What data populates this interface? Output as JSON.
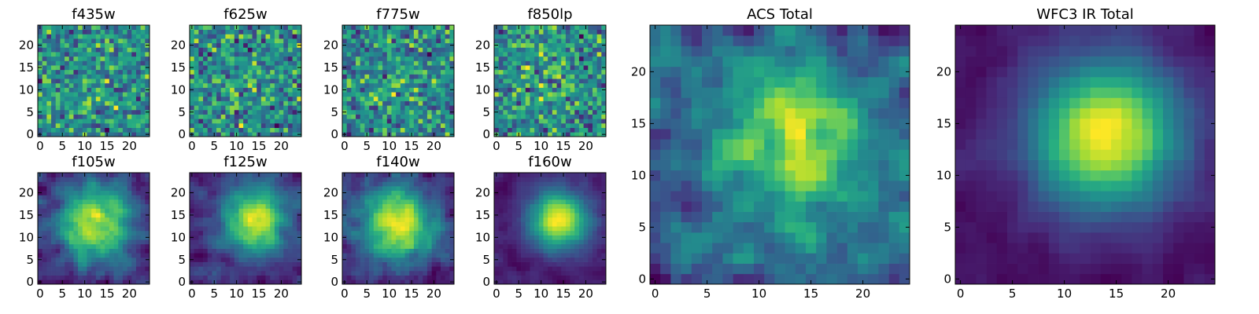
{
  "figure": {
    "colormap": "viridis"
  },
  "chart_data": [
    {
      "type": "heatmap",
      "title": "f435w",
      "grid_size": 25,
      "seed": 11,
      "blob": {
        "cx": 12,
        "cy": 12,
        "sigma": 5,
        "amp": 0.05
      },
      "noise": 1.0,
      "xticks": [
        "0",
        "5",
        "10",
        "15",
        "20"
      ],
      "yticks": [
        "0",
        "5",
        "10",
        "15",
        "20"
      ]
    },
    {
      "type": "heatmap",
      "title": "f625w",
      "grid_size": 25,
      "seed": 23,
      "blob": {
        "cx": 12,
        "cy": 12,
        "sigma": 5,
        "amp": 0.05
      },
      "noise": 1.0,
      "xticks": [
        "0",
        "5",
        "10",
        "15",
        "20"
      ],
      "yticks": [
        "0",
        "5",
        "10",
        "15",
        "20"
      ]
    },
    {
      "type": "heatmap",
      "title": "f775w",
      "grid_size": 25,
      "seed": 37,
      "blob": {
        "cx": 12,
        "cy": 12,
        "sigma": 5,
        "amp": 0.08
      },
      "noise": 1.0,
      "xticks": [
        "0",
        "5",
        "10",
        "15",
        "20"
      ],
      "yticks": [
        "0",
        "5",
        "10",
        "15",
        "20"
      ]
    },
    {
      "type": "heatmap",
      "title": "f850lp",
      "grid_size": 25,
      "seed": 41,
      "blob": {
        "cx": 12,
        "cy": 12,
        "sigma": 5,
        "amp": 0.08
      },
      "noise": 1.0,
      "xticks": [
        "0",
        "5",
        "10",
        "15",
        "20"
      ],
      "yticks": [
        "0",
        "5",
        "10",
        "15",
        "20"
      ]
    },
    {
      "type": "heatmap",
      "title": "f105w",
      "grid_size": 25,
      "seed": 53,
      "blob": {
        "cx": 12,
        "cy": 13,
        "sigma": 6,
        "amp": 0.5
      },
      "noise": 0.7,
      "xticks": [
        "0",
        "5",
        "10",
        "15",
        "20"
      ],
      "yticks": [
        "0",
        "5",
        "10",
        "15",
        "20"
      ]
    },
    {
      "type": "heatmap",
      "title": "f125w",
      "grid_size": 25,
      "seed": 67,
      "blob": {
        "cx": 14,
        "cy": 14,
        "sigma": 5,
        "amp": 0.6
      },
      "noise": 0.65,
      "xticks": [
        "0",
        "5",
        "10",
        "15",
        "20"
      ],
      "yticks": [
        "0",
        "5",
        "10",
        "15",
        "20"
      ]
    },
    {
      "type": "heatmap",
      "title": "f140w",
      "grid_size": 25,
      "seed": 79,
      "blob": {
        "cx": 12,
        "cy": 13,
        "sigma": 6,
        "amp": 0.5
      },
      "noise": 0.7,
      "xticks": [
        "0",
        "5",
        "10",
        "15",
        "20"
      ],
      "yticks": [
        "0",
        "5",
        "10",
        "15",
        "20"
      ]
    },
    {
      "type": "heatmap",
      "title": "f160w",
      "grid_size": 25,
      "seed": 83,
      "blob": {
        "cx": 14,
        "cy": 14,
        "sigma": 4.5,
        "amp": 0.85
      },
      "noise": 0.45,
      "xticks": [
        "0",
        "5",
        "10",
        "15",
        "20"
      ],
      "yticks": [
        "0",
        "5",
        "10",
        "15",
        "20"
      ]
    },
    {
      "type": "heatmap",
      "title": "ACS Total",
      "grid_size": 25,
      "seed": 97,
      "blob": {
        "cx": 14,
        "cy": 13,
        "sigma": 5,
        "amp": 0.25
      },
      "noise": 0.7,
      "xticks": [
        "0",
        "5",
        "10",
        "15",
        "20"
      ],
      "yticks": [
        "0",
        "5",
        "10",
        "15",
        "20"
      ]
    },
    {
      "type": "heatmap",
      "title": "WFC3 IR Total",
      "grid_size": 25,
      "seed": 101,
      "blob": {
        "cx": 14,
        "cy": 14,
        "sigma": 5,
        "amp": 0.9
      },
      "noise": 0.35,
      "xticks": [
        "0",
        "5",
        "10",
        "15",
        "20"
      ],
      "yticks": [
        "0",
        "5",
        "10",
        "15",
        "20"
      ]
    }
  ]
}
